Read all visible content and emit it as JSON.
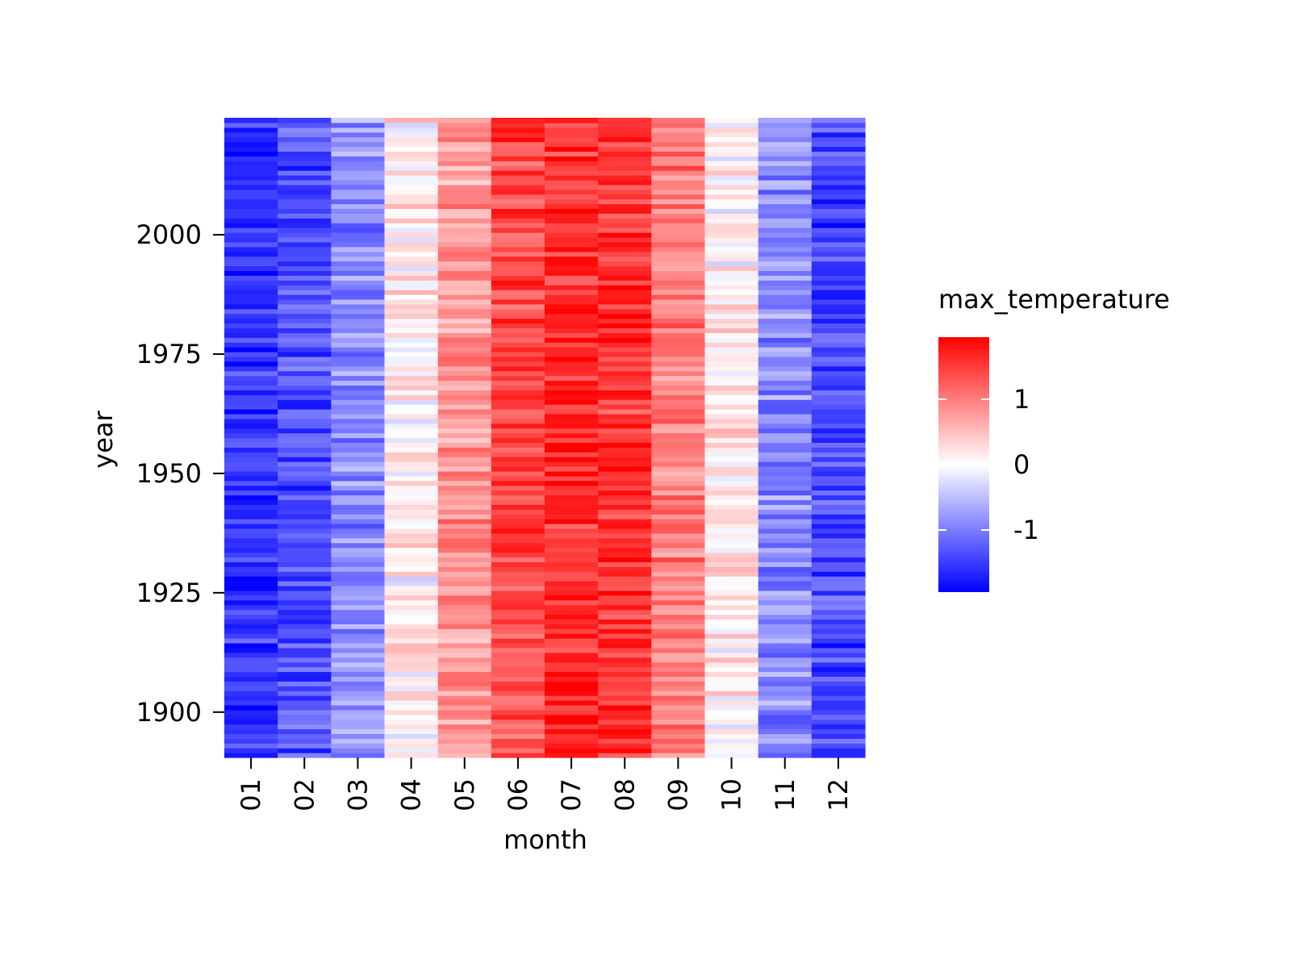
{
  "chart_data": {
    "type": "heatmap",
    "title": "",
    "xlabel": "month",
    "ylabel": "year",
    "x_categories": [
      "01",
      "02",
      "03",
      "04",
      "05",
      "06",
      "07",
      "08",
      "09",
      "10",
      "11",
      "12"
    ],
    "y_range": [
      1891,
      2024
    ],
    "y_ticks": [
      1900,
      1925,
      1950,
      1975,
      2000
    ],
    "monthly_mean_values": [
      -1.55,
      -1.35,
      -0.85,
      0.1,
      0.8,
      1.4,
      1.65,
      1.55,
      1.0,
      0.15,
      -0.9,
      -1.4
    ],
    "colorscale": {
      "name": "bwr",
      "low_color": "#0000ff",
      "mid_color": "#ffffff",
      "high_color": "#ff0000",
      "range": [
        -1.95,
        1.95
      ],
      "ticks": [
        1,
        0,
        -1
      ],
      "tick_labels": [
        "1",
        "0",
        "-1"
      ],
      "legend_title": "max_temperature"
    },
    "grid": false,
    "legend_position": "right"
  }
}
